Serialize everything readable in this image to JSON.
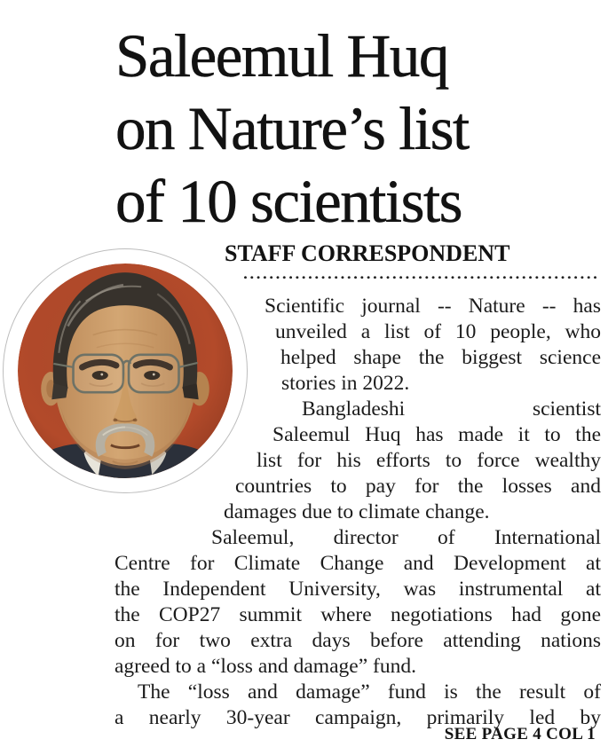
{
  "article": {
    "headline_lines": [
      "Saleemul Huq",
      "on Nature’s list",
      "of 10 scientists"
    ],
    "byline": "STAFF CORRESPONDENT",
    "body_lines": [
      "Scientific journal -- Nature -- has",
      "unveiled a list of 10 people, who",
      "helped shape the biggest science",
      "stories in 2022.",
      "Bangladeshi scientist",
      "Saleemul Huq has made it to the",
      "list for his efforts to force wealthy",
      "countries to pay for the losses and",
      "damages due to climate change.",
      "Saleemul, director of International",
      "Centre for Climate Change and Development at",
      "the Independent University, was instrumental at",
      "the COP27 summit where negotiations had gone",
      "on for two extra days before attending nations",
      "agreed to a “loss and damage” fund.",
      "The “loss and damage” fund is the result of",
      "a nearly 30-year campaign, primarily led by"
    ],
    "continuation": "SEE PAGE 4 COL 1"
  },
  "photo": {
    "subject": "Saleemul Huq portrait",
    "background_color": "#b34a2a",
    "ring_color": "#ffffff",
    "jacket_color": "#2b303a",
    "skin_color": "#cb9a68",
    "hair_color": "#37322c",
    "mustache_color": "#b6b0a2"
  },
  "colors": {
    "text": "#1b1b1b",
    "rule": "#222222",
    "page_background": "#ffffff"
  }
}
